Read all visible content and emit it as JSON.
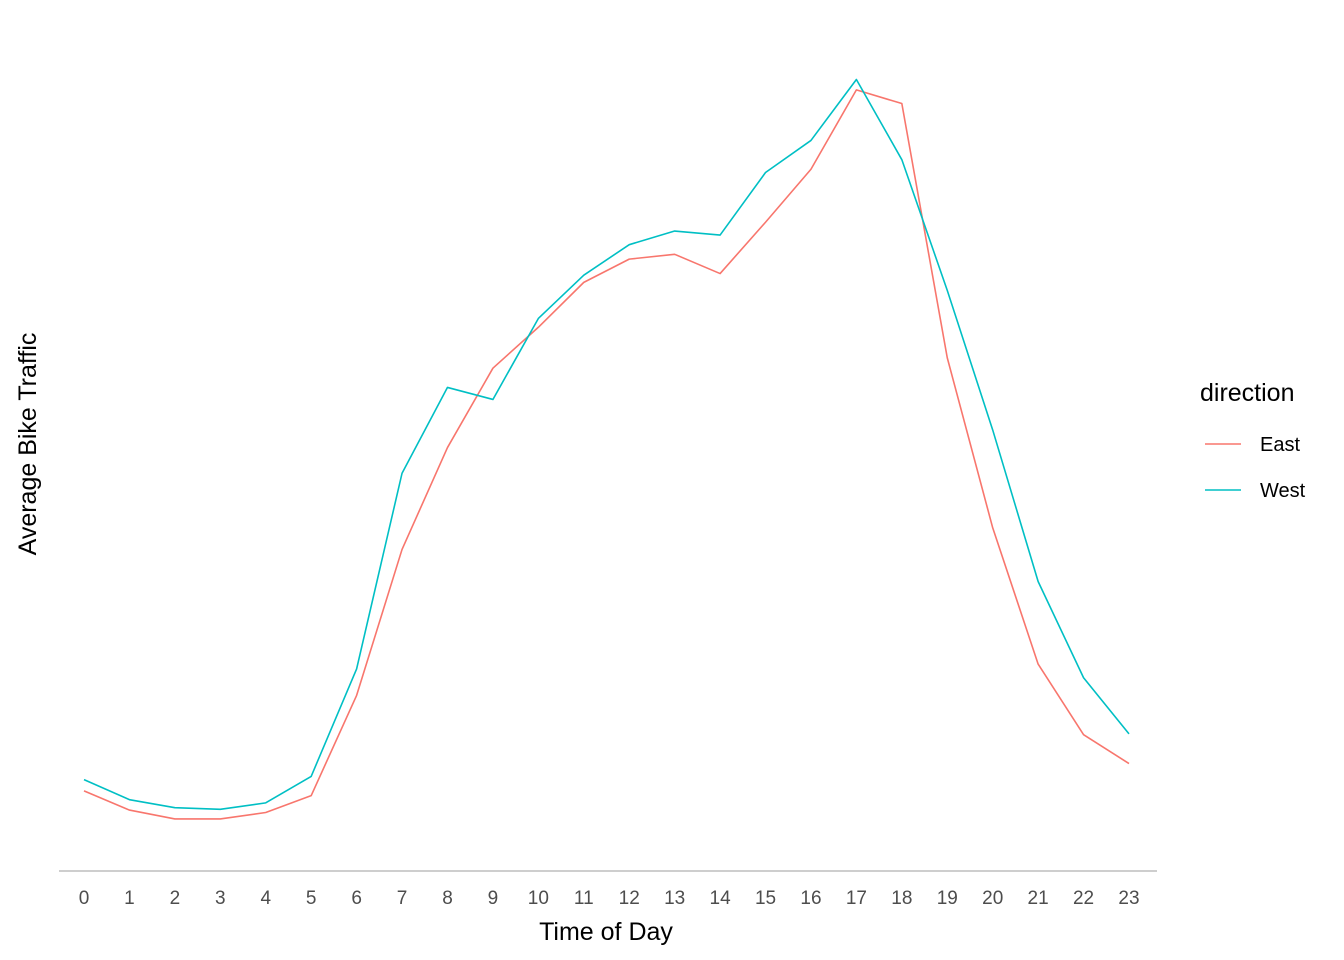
{
  "chart_data": {
    "type": "line",
    "title": "",
    "xlabel": "Time of Day",
    "ylabel": "Average Bike Traffic",
    "x": [
      0,
      1,
      2,
      3,
      4,
      5,
      6,
      7,
      8,
      9,
      10,
      11,
      12,
      13,
      14,
      15,
      16,
      17,
      18,
      19,
      20,
      21,
      22,
      23
    ],
    "tick_labels": [
      "0",
      "1",
      "2",
      "3",
      "4",
      "5",
      "6",
      "7",
      "8",
      "9",
      "10",
      "11",
      "12",
      "13",
      "14",
      "15",
      "16",
      "17",
      "18",
      "19",
      "20",
      "21",
      "22",
      "23"
    ],
    "ylim": [
      0,
      100
    ],
    "y_axis_labels_shown": false,
    "grid": false,
    "legend": {
      "title": "direction",
      "position": "right"
    },
    "series": [
      {
        "name": "East",
        "color": "#F8766D",
        "values": [
          8.0,
          5.6,
          4.5,
          4.5,
          5.3,
          7.4,
          19.9,
          38.1,
          50.8,
          60.7,
          65.8,
          71.4,
          74.3,
          74.9,
          72.5,
          78.9,
          85.5,
          95.4,
          93.7,
          62.0,
          40.8,
          23.8,
          15.0,
          11.4
        ]
      },
      {
        "name": "West",
        "color": "#00BFC4",
        "values": [
          9.4,
          6.9,
          5.9,
          5.7,
          6.5,
          9.8,
          23.2,
          47.6,
          58.3,
          56.8,
          66.9,
          72.3,
          76.1,
          77.8,
          77.3,
          85.1,
          89.1,
          96.7,
          86.7,
          70.4,
          53.0,
          34.1,
          22.1,
          15.1
        ]
      }
    ]
  }
}
